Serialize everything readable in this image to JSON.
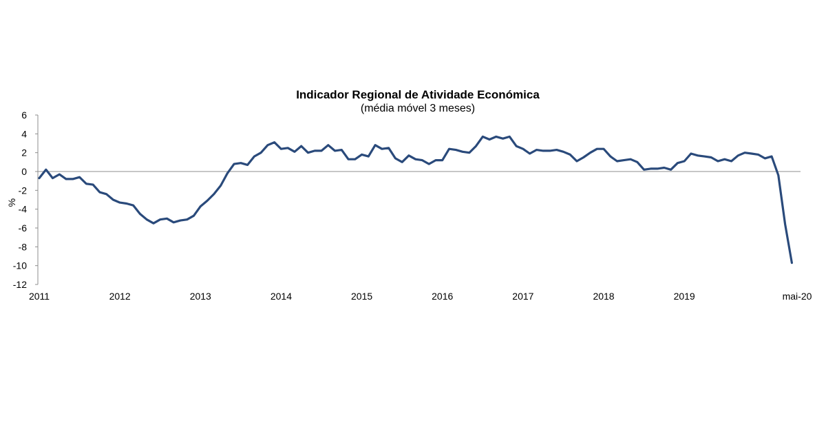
{
  "chart_data": {
    "type": "line",
    "title": "Indicador Regional de Atividade Económica",
    "subtitle": "(média móvel 3 meses)",
    "ylabel": "%",
    "xlabel": "",
    "ylim": [
      -12,
      6
    ],
    "yticks": [
      "6",
      "4",
      "2",
      "0",
      "-2",
      "-4",
      "-6",
      "-8",
      "-10",
      "-12"
    ],
    "xtick_labels": [
      "2011",
      "2012",
      "2013",
      "2014",
      "2015",
      "2016",
      "2017",
      "2018",
      "2019",
      "mai-20"
    ],
    "line_color": "#2A4A7B",
    "grid": false,
    "series": [
      {
        "values": [
          -0.7,
          0.2,
          -0.7,
          -0.3,
          -0.8,
          -0.8,
          -0.6,
          -1.3,
          -1.4,
          -2.2,
          -2.4,
          -3.0,
          -3.3,
          -3.4,
          -3.6,
          -4.5,
          -5.1,
          -5.5,
          -5.1,
          -5.0,
          -5.4,
          -5.2,
          -5.1,
          -4.7,
          -3.7,
          -3.1,
          -2.4,
          -1.5,
          -0.2,
          0.8,
          0.9,
          0.7,
          1.6,
          2.0,
          2.8,
          3.1,
          2.4,
          2.5,
          2.1,
          2.7,
          2.0,
          2.2,
          2.2,
          2.8,
          2.2,
          2.3,
          1.3,
          1.3,
          1.8,
          1.6,
          2.8,
          2.4,
          2.5,
          1.4,
          1.0,
          1.7,
          1.3,
          1.2,
          0.8,
          1.2,
          1.2,
          2.4,
          2.3,
          2.1,
          2.0,
          2.7,
          3.7,
          3.4,
          3.7,
          3.5,
          3.7,
          2.7,
          2.4,
          1.9,
          2.3,
          2.2,
          2.2,
          2.3,
          2.1,
          1.8,
          1.1,
          1.5,
          2.0,
          2.4,
          2.4,
          1.6,
          1.1,
          1.2,
          1.3,
          1.0,
          0.2,
          0.3,
          0.3,
          0.4,
          0.2,
          0.9,
          1.1,
          1.9,
          1.7,
          1.6,
          1.5,
          1.1,
          1.3,
          1.1,
          1.7,
          2.0,
          1.9,
          1.8,
          1.4,
          1.6,
          -0.4,
          -5.6,
          -9.7
        ]
      }
    ]
  }
}
